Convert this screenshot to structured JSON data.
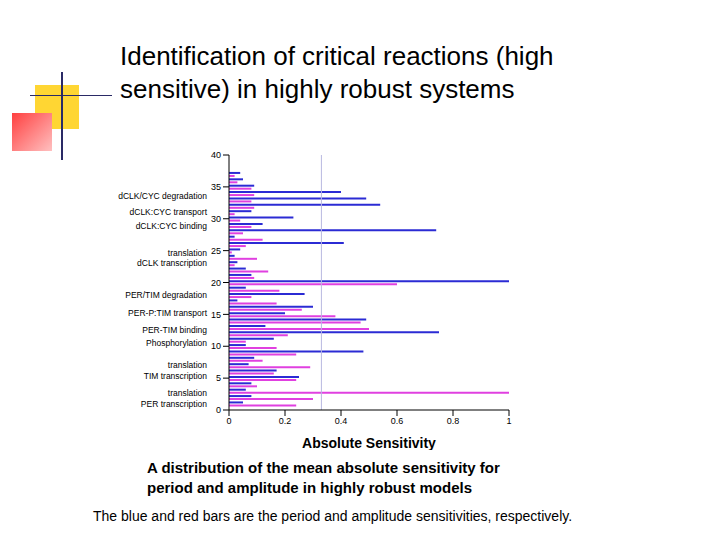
{
  "slide": {
    "title": "Identification of critical reactions (high\nsensitive) in highly robust systems",
    "caption": "A distribution of the mean absolute sensitivity for\nperiod and amplitude in highly robust models",
    "note": "The blue and red bars are the period and amplitude sensitivities, respectively."
  },
  "chart_data": {
    "type": "bar",
    "orientation": "horizontal",
    "xlabel": "Absolute Sensitivity",
    "xlim": [
      0,
      1
    ],
    "xticks": [
      0,
      0.2,
      0.4,
      0.6,
      0.8,
      1
    ],
    "ylim": [
      0,
      40
    ],
    "yticks": [
      0,
      5,
      10,
      15,
      20,
      25,
      30,
      35,
      40
    ],
    "y": [
      1,
      2,
      3,
      4,
      5,
      6,
      7,
      8,
      9,
      10,
      11,
      12,
      13,
      14,
      15,
      16,
      17,
      18,
      19,
      20,
      21,
      22,
      23,
      24,
      25,
      26,
      27,
      28,
      29,
      30,
      31,
      32,
      33,
      34,
      35,
      36,
      37
    ],
    "series": [
      {
        "color": "#2b2bd4",
        "values": [
          0.05,
          0.08,
          0.06,
          0.08,
          0.25,
          0.17,
          0.07,
          0.09,
          0.48,
          0.06,
          0.16,
          0.75,
          0.13,
          0.49,
          0.2,
          0.3,
          0.03,
          0.27,
          0.06,
          1.0,
          0.08,
          0.06,
          0.03,
          0.02,
          0.04,
          0.41,
          0.02,
          0.74,
          0.12,
          0.23,
          0.08,
          0.54,
          0.49,
          0.4,
          0.09,
          0.05,
          0.04
        ]
      },
      {
        "color": "#e040e0",
        "values": [
          0.24,
          0.3,
          1.0,
          0.1,
          0.24,
          0.16,
          0.29,
          0.12,
          0.24,
          0.17,
          0.06,
          0.21,
          0.5,
          0.47,
          0.38,
          0.26,
          0.17,
          0.08,
          0.18,
          0.6,
          0.09,
          0.14,
          0.02,
          0.1,
          0.01,
          0.06,
          0.12,
          0.05,
          0.08,
          0.04,
          0.02,
          0.09,
          0.08,
          0.09,
          0.08,
          0.03,
          0.02
        ]
      }
    ],
    "reference_line": {
      "x": 0.33,
      "color": "#b8b8e0"
    },
    "annotations": [
      {
        "text": "PER transcription",
        "y": 1
      },
      {
        "text": "translation",
        "y": 2.6
      },
      {
        "text": "TIM transcription",
        "y": 5.4
      },
      {
        "text": "translation",
        "y": 7
      },
      {
        "text": "Phosphorylation",
        "y": 10.5
      },
      {
        "text": "PER-TIM binding",
        "y": 12.5
      },
      {
        "text": "PER-P:TIM transport",
        "y": 15.2
      },
      {
        "text": "PER/TIM degradation",
        "y": 18
      },
      {
        "text": "dCLK transcription",
        "y": 23
      },
      {
        "text": "translation",
        "y": 24.6
      },
      {
        "text": "dCLK:CYC binding",
        "y": 28.8
      },
      {
        "text": "dCLK:CYC transport",
        "y": 31
      },
      {
        "text": "dCLK/CYC degradation",
        "y": 33.6
      }
    ]
  }
}
